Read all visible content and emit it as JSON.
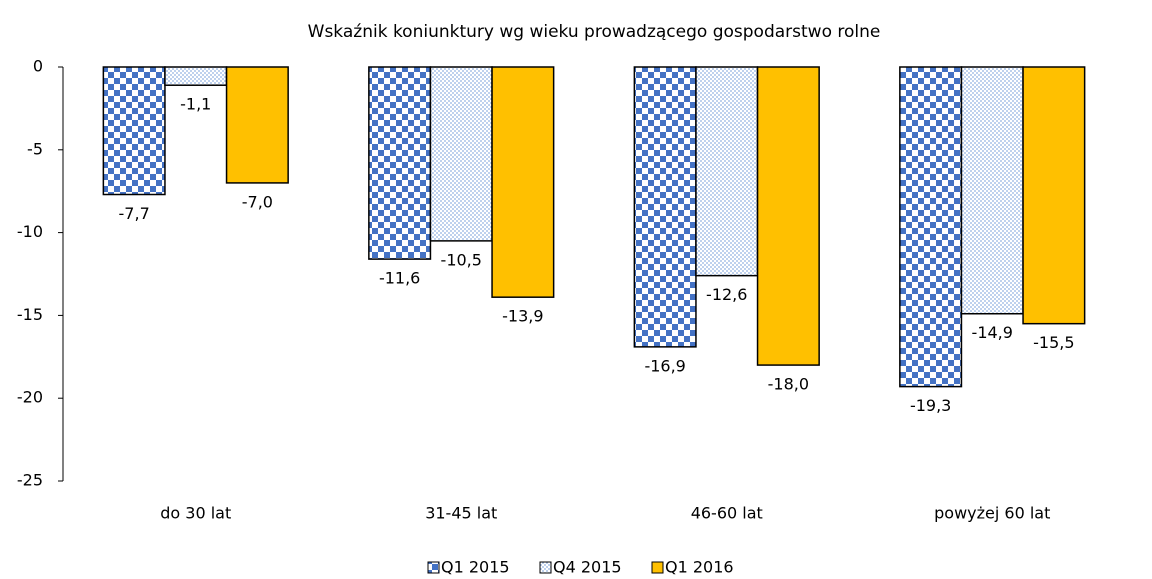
{
  "chart_data": {
    "type": "bar",
    "title": "Wskaźnik koniunktury wg wieku prowadzącego gospodarstwo rolne",
    "categories": [
      "do 30 lat",
      "31-45 lat",
      "46-60 lat",
      "powyżej 60 lat"
    ],
    "series": [
      {
        "name": "Q1 2015",
        "color": "#4472c4",
        "pattern": "checker",
        "values": [
          -7.7,
          -11.6,
          -16.9,
          -19.3
        ],
        "value_labels": [
          "-7,7",
          "-11,6",
          "-16,9",
          "-19,3"
        ]
      },
      {
        "name": "Q4 2015",
        "color": "#8fb0e0",
        "pattern": "dots",
        "values": [
          -1.1,
          -10.5,
          -12.6,
          -14.9
        ],
        "value_labels": [
          "-1,1",
          "-10,5",
          "-12,6",
          "-14,9"
        ]
      },
      {
        "name": "Q1 2016",
        "color": "#ffc000",
        "pattern": "solid",
        "values": [
          -7.0,
          -13.9,
          -18.0,
          -15.5
        ],
        "value_labels": [
          "-7,0",
          "-13,9",
          "-18,0",
          "-15,5"
        ]
      }
    ],
    "ylim": [
      -25,
      0
    ],
    "yticks": [
      0,
      -5,
      -10,
      -15,
      -20,
      -25
    ],
    "grid": false,
    "legend": "bottom"
  }
}
